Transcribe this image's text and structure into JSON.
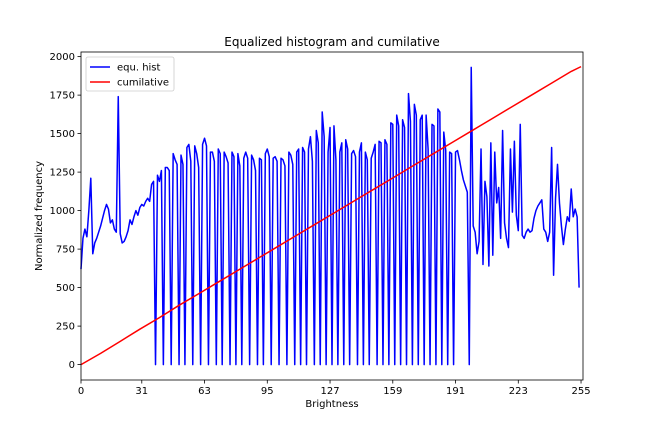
{
  "chart_data": {
    "type": "line",
    "title": "Equalized histogram and cumilative",
    "xlabel": "Brightness",
    "ylabel": "Normalized frequency",
    "xlim": [
      0,
      256
    ],
    "ylim": [
      -100,
      2030
    ],
    "xticks": [
      0,
      31,
      63,
      95,
      127,
      159,
      191,
      223,
      255
    ],
    "yticks": [
      0,
      250,
      500,
      750,
      1000,
      1250,
      1500,
      1750,
      2000
    ],
    "legend_position": "top-left",
    "grid": false,
    "series": [
      {
        "name": "equ. hist",
        "color": "#0000ff",
        "points": [
          [
            0,
            620
          ],
          [
            1,
            820
          ],
          [
            2,
            880
          ],
          [
            3,
            830
          ],
          [
            4,
            1000
          ],
          [
            5,
            1210
          ],
          [
            6,
            720
          ],
          [
            7,
            790
          ],
          [
            8,
            820
          ],
          [
            9,
            860
          ],
          [
            10,
            900
          ],
          [
            11,
            950
          ],
          [
            12,
            1000
          ],
          [
            13,
            1040
          ],
          [
            14,
            1010
          ],
          [
            15,
            920
          ],
          [
            16,
            940
          ],
          [
            17,
            880
          ],
          [
            18,
            860
          ],
          [
            19,
            1740
          ],
          [
            20,
            850
          ],
          [
            21,
            790
          ],
          [
            22,
            800
          ],
          [
            23,
            830
          ],
          [
            24,
            870
          ],
          [
            25,
            940
          ],
          [
            26,
            910
          ],
          [
            27,
            960
          ],
          [
            28,
            1000
          ],
          [
            29,
            970
          ],
          [
            30,
            1020
          ],
          [
            31,
            1040
          ],
          [
            32,
            1030
          ],
          [
            33,
            1060
          ],
          [
            34,
            1080
          ],
          [
            35,
            1060
          ],
          [
            36,
            1170
          ],
          [
            37,
            1190
          ],
          [
            38,
            0
          ],
          [
            39,
            1230
          ],
          [
            40,
            1190
          ],
          [
            41,
            1260
          ],
          [
            42,
            0
          ],
          [
            43,
            1280
          ],
          [
            44,
            1280
          ],
          [
            45,
            1260
          ],
          [
            46,
            0
          ],
          [
            47,
            1370
          ],
          [
            48,
            1330
          ],
          [
            49,
            1300
          ],
          [
            50,
            0
          ],
          [
            51,
            1360
          ],
          [
            52,
            1300
          ],
          [
            53,
            0
          ],
          [
            54,
            1410
          ],
          [
            55,
            1430
          ],
          [
            56,
            1320
          ],
          [
            57,
            0
          ],
          [
            58,
            1420
          ],
          [
            59,
            1370
          ],
          [
            60,
            1280
          ],
          [
            61,
            0
          ],
          [
            62,
            1430
          ],
          [
            63,
            1470
          ],
          [
            64,
            1420
          ],
          [
            65,
            0
          ],
          [
            66,
            1380
          ],
          [
            67,
            1380
          ],
          [
            68,
            1320
          ],
          [
            69,
            0
          ],
          [
            70,
            1400
          ],
          [
            71,
            1370
          ],
          [
            72,
            0
          ],
          [
            73,
            1380
          ],
          [
            74,
            1350
          ],
          [
            75,
            1310
          ],
          [
            76,
            0
          ],
          [
            77,
            1380
          ],
          [
            78,
            1350
          ],
          [
            79,
            0
          ],
          [
            80,
            1370
          ],
          [
            81,
            1290
          ],
          [
            82,
            0
          ],
          [
            83,
            1340
          ],
          [
            84,
            1380
          ],
          [
            85,
            1340
          ],
          [
            86,
            0
          ],
          [
            87,
            1360
          ],
          [
            88,
            1330
          ],
          [
            89,
            1260
          ],
          [
            90,
            0
          ],
          [
            91,
            1340
          ],
          [
            92,
            1330
          ],
          [
            93,
            0
          ],
          [
            94,
            1370
          ],
          [
            95,
            1400
          ],
          [
            96,
            1350
          ],
          [
            97,
            0
          ],
          [
            98,
            1340
          ],
          [
            99,
            1350
          ],
          [
            100,
            1320
          ],
          [
            101,
            0
          ],
          [
            102,
            1340
          ],
          [
            103,
            1330
          ],
          [
            104,
            1290
          ],
          [
            105,
            0
          ],
          [
            106,
            1380
          ],
          [
            107,
            1360
          ],
          [
            108,
            1300
          ],
          [
            109,
            0
          ],
          [
            110,
            1380
          ],
          [
            111,
            1400
          ],
          [
            112,
            0
          ],
          [
            113,
            1410
          ],
          [
            114,
            1380
          ],
          [
            115,
            0
          ],
          [
            116,
            1400
          ],
          [
            117,
            1480
          ],
          [
            118,
            1320
          ],
          [
            119,
            0
          ],
          [
            120,
            1520
          ],
          [
            121,
            1440
          ],
          [
            122,
            0
          ],
          [
            123,
            1640
          ],
          [
            124,
            1480
          ],
          [
            125,
            0
          ],
          [
            126,
            1380
          ],
          [
            127,
            1540
          ],
          [
            128,
            0
          ],
          [
            129,
            1550
          ],
          [
            130,
            1330
          ],
          [
            131,
            0
          ],
          [
            132,
            1380
          ],
          [
            133,
            1440
          ],
          [
            134,
            0
          ],
          [
            135,
            1460
          ],
          [
            136,
            1400
          ],
          [
            137,
            0
          ],
          [
            138,
            1370
          ],
          [
            139,
            1390
          ],
          [
            140,
            1350
          ],
          [
            141,
            0
          ],
          [
            142,
            1380
          ],
          [
            143,
            1440
          ],
          [
            144,
            0
          ],
          [
            145,
            1380
          ],
          [
            146,
            1330
          ],
          [
            147,
            0
          ],
          [
            148,
            1340
          ],
          [
            149,
            1380
          ],
          [
            150,
            1430
          ],
          [
            151,
            0
          ],
          [
            152,
            1450
          ],
          [
            153,
            1440
          ],
          [
            154,
            0
          ],
          [
            155,
            1460
          ],
          [
            156,
            1430
          ],
          [
            157,
            0
          ],
          [
            158,
            1570
          ],
          [
            159,
            1560
          ],
          [
            160,
            0
          ],
          [
            161,
            1620
          ],
          [
            162,
            1550
          ],
          [
            163,
            0
          ],
          [
            164,
            1590
          ],
          [
            165,
            1540
          ],
          [
            166,
            0
          ],
          [
            167,
            1760
          ],
          [
            168,
            1580
          ],
          [
            169,
            0
          ],
          [
            170,
            1690
          ],
          [
            171,
            1620
          ],
          [
            172,
            0
          ],
          [
            173,
            1590
          ],
          [
            174,
            1620
          ],
          [
            175,
            0
          ],
          [
            176,
            1620
          ],
          [
            177,
            1400
          ],
          [
            178,
            0
          ],
          [
            179,
            1560
          ],
          [
            180,
            1550
          ],
          [
            181,
            0
          ],
          [
            182,
            1660
          ],
          [
            183,
            1640
          ],
          [
            184,
            0
          ],
          [
            185,
            1510
          ],
          [
            186,
            1390
          ],
          [
            187,
            0
          ],
          [
            188,
            1380
          ],
          [
            189,
            1370
          ],
          [
            190,
            0
          ],
          [
            191,
            1380
          ],
          [
            192,
            1390
          ],
          [
            193,
            1330
          ],
          [
            194,
            1260
          ],
          [
            195,
            1200
          ],
          [
            196,
            1160
          ],
          [
            197,
            1120
          ],
          [
            198,
            0
          ],
          [
            199,
            1930
          ],
          [
            200,
            900
          ],
          [
            201,
            860
          ],
          [
            202,
            720
          ],
          [
            203,
            800
          ],
          [
            204,
            1400
          ],
          [
            205,
            650
          ],
          [
            206,
            1190
          ],
          [
            207,
            1090
          ],
          [
            208,
            640
          ],
          [
            209,
            1440
          ],
          [
            210,
            710
          ],
          [
            211,
            1380
          ],
          [
            212,
            1050
          ],
          [
            213,
            1150
          ],
          [
            214,
            820
          ],
          [
            215,
            1520
          ],
          [
            216,
            920
          ],
          [
            217,
            820
          ],
          [
            218,
            760
          ],
          [
            219,
            1400
          ],
          [
            220,
            990
          ],
          [
            221,
            1450
          ],
          [
            222,
            970
          ],
          [
            223,
            870
          ],
          [
            224,
            1560
          ],
          [
            225,
            840
          ],
          [
            226,
            820
          ],
          [
            227,
            860
          ],
          [
            228,
            880
          ],
          [
            229,
            860
          ],
          [
            230,
            870
          ],
          [
            231,
            950
          ],
          [
            232,
            1000
          ],
          [
            233,
            1030
          ],
          [
            234,
            1050
          ],
          [
            235,
            1070
          ],
          [
            236,
            880
          ],
          [
            237,
            860
          ],
          [
            238,
            800
          ],
          [
            239,
            860
          ],
          [
            240,
            1410
          ],
          [
            241,
            580
          ],
          [
            242,
            1080
          ],
          [
            243,
            1300
          ],
          [
            244,
            1050
          ],
          [
            245,
            900
          ],
          [
            246,
            780
          ],
          [
            247,
            880
          ],
          [
            248,
            960
          ],
          [
            249,
            930
          ],
          [
            250,
            1140
          ],
          [
            251,
            960
          ],
          [
            252,
            1010
          ],
          [
            253,
            960
          ],
          [
            254,
            500
          ]
        ]
      },
      {
        "name": "cumilative",
        "color": "#ff0000",
        "points": [
          [
            0,
            0
          ],
          [
            10,
            73
          ],
          [
            20,
            151
          ],
          [
            30,
            230
          ],
          [
            40,
            305
          ],
          [
            50,
            385
          ],
          [
            60,
            460
          ],
          [
            70,
            536
          ],
          [
            80,
            612
          ],
          [
            90,
            688
          ],
          [
            100,
            764
          ],
          [
            110,
            840
          ],
          [
            120,
            916
          ],
          [
            130,
            992
          ],
          [
            140,
            1068
          ],
          [
            150,
            1144
          ],
          [
            160,
            1220
          ],
          [
            170,
            1296
          ],
          [
            180,
            1372
          ],
          [
            190,
            1448
          ],
          [
            200,
            1524
          ],
          [
            210,
            1600
          ],
          [
            220,
            1676
          ],
          [
            230,
            1752
          ],
          [
            240,
            1828
          ],
          [
            250,
            1904
          ],
          [
            255,
            1935
          ]
        ]
      }
    ]
  }
}
